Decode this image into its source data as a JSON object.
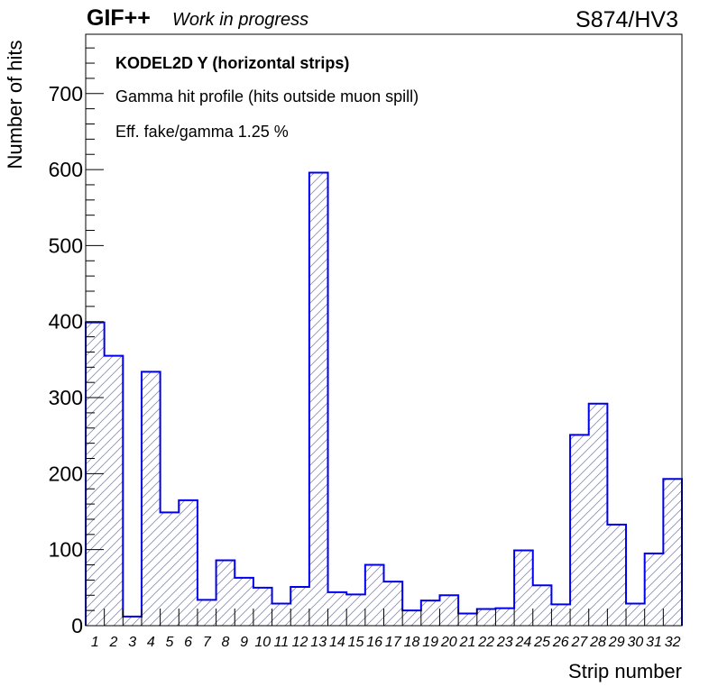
{
  "header": {
    "experiment": "GIF++",
    "status": "Work in progress",
    "detector": "S874/HV3"
  },
  "annotations": [
    "KODEL2D Y (horizontal strips)",
    "Gamma hit profile (hits outside muon spill)",
    "Eff. fake/gamma 1.25 %"
  ],
  "colors": {
    "line": "#0000ee",
    "hatch": "#8888cc",
    "axis": "#000000"
  },
  "chart_data": {
    "type": "bar",
    "title": "",
    "xlabel": "Strip number",
    "ylabel": "Number of hits",
    "categories": [
      "1",
      "2",
      "3",
      "4",
      "5",
      "6",
      "7",
      "8",
      "9",
      "10",
      "11",
      "12",
      "13",
      "14",
      "15",
      "16",
      "17",
      "18",
      "19",
      "20",
      "21",
      "22",
      "23",
      "24",
      "25",
      "26",
      "27",
      "28",
      "29",
      "30",
      "31",
      "32"
    ],
    "series": [
      {
        "values": [
          399,
          355,
          12,
          334,
          149,
          165,
          34,
          86,
          63,
          50,
          29,
          51,
          596,
          44,
          41,
          80,
          58,
          20,
          33,
          40,
          16,
          22,
          23,
          99,
          53,
          28,
          251,
          292,
          133,
          29,
          95,
          193
        ]
      }
    ],
    "ylim": [
      0,
      778
    ],
    "yticks": [
      "0",
      "100",
      "200",
      "300",
      "400",
      "500",
      "600",
      "700"
    ],
    "style": "step histogram with diagonal hatch fill",
    "grid": false,
    "legend": "none"
  }
}
